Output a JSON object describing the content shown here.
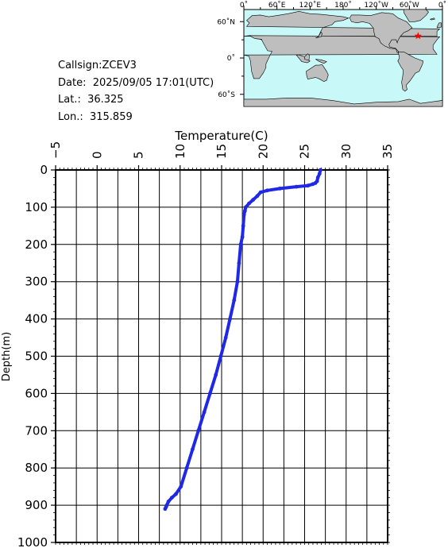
{
  "station": {
    "callsign": "Callsign:ZCEV3",
    "date": "Date:  2025/09/05 17:01(UTC)",
    "lat": "Lat.:  36.325",
    "lon": "Lon.:  315.859"
  },
  "map": {
    "lon_labels": [
      "0˚",
      "60˚E",
      "120˚E",
      "180˚",
      "120˚W",
      "60˚W",
      "0˚"
    ],
    "lat_labels": [
      "60˚N",
      "0˚",
      "60˚S"
    ],
    "marker_lon": 315.859,
    "marker_lat": 36.325,
    "ocean_color": "#c8f8f8",
    "land_color": "#bebebe",
    "marker_color": "#ff0000"
  },
  "chart_data": {
    "type": "line",
    "xlabel": "Temperature(C)",
    "ylabel": "Depth(m)",
    "xlim": [
      -5,
      35
    ],
    "ylim": [
      1000,
      0
    ],
    "x_ticks": [
      "−5",
      "0",
      "5",
      "10",
      "15",
      "20",
      "25",
      "30",
      "35"
    ],
    "y_ticks": [
      "0",
      "100",
      "200",
      "300",
      "400",
      "500",
      "600",
      "700",
      "800",
      "900",
      "1000"
    ],
    "grid": true,
    "line_color": "#1e28e6",
    "series": [
      {
        "x": [
          26.9,
          26.8,
          26.6,
          26.5,
          26.3,
          26.0,
          25.4,
          24.0,
          22.0,
          20.5,
          19.7,
          19.3,
          18.8,
          18.3,
          17.9,
          17.8,
          17.7,
          17.6,
          17.5,
          17.3,
          17.1,
          16.9,
          16.5,
          16.0,
          15.5,
          14.9,
          14.3,
          13.6,
          12.9,
          12.2,
          11.5,
          10.8,
          10.1,
          9.5,
          9.0,
          8.6,
          8.4,
          8.3,
          8.2
        ],
        "y": [
          0,
          10,
          20,
          30,
          35,
          38,
          42,
          45,
          50,
          55,
          60,
          70,
          80,
          90,
          100,
          110,
          120,
          150,
          180,
          200,
          250,
          300,
          350,
          400,
          450,
          500,
          550,
          600,
          650,
          700,
          750,
          800,
          850,
          870,
          880,
          890,
          900,
          905,
          910
        ]
      }
    ]
  }
}
